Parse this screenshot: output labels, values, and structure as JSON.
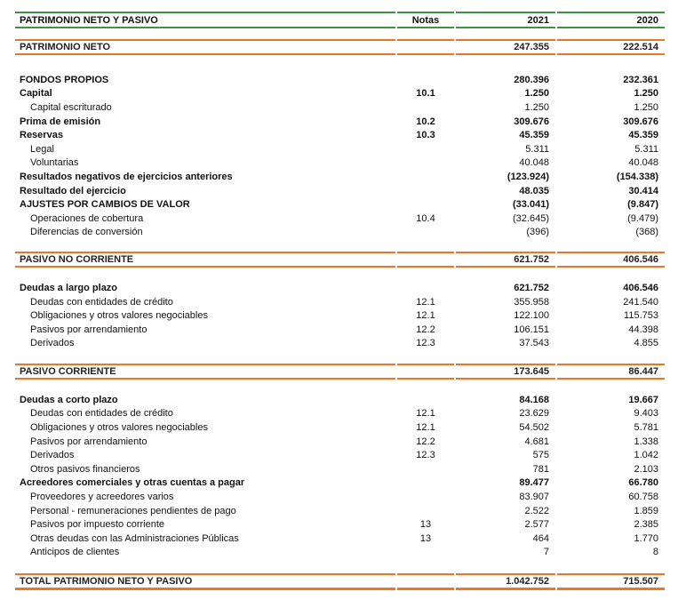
{
  "document_title": "PATRIMONIO NETO Y PASIVO",
  "colors": {
    "header_line_green": "#3f9145",
    "section_line_orange": "#ee7525",
    "text": "#111111"
  },
  "table": {
    "header": {
      "label": "PATRIMONIO NETO Y PASIVO",
      "notes": "Notas",
      "col2021": "2021",
      "col2020": "2020"
    },
    "rows": [
      {
        "style": "spacer",
        "height": 12
      },
      {
        "style": "section",
        "label": "PATRIMONIO NETO",
        "notes": "",
        "y2021": "247.355",
        "y2020": "222.514"
      },
      {
        "style": "spacer",
        "height": 20
      },
      {
        "style": "bold",
        "label": "FONDOS PROPIOS",
        "notes": "",
        "y2021": "280.396",
        "y2020": "232.361"
      },
      {
        "style": "bold",
        "label": "Capital",
        "notes": "10.1",
        "y2021": "1.250",
        "y2020": "1.250"
      },
      {
        "style": "item",
        "label": "Capital escriturado",
        "notes": "",
        "y2021": "1.250",
        "y2020": "1.250"
      },
      {
        "style": "bold",
        "label": "Prima de emisión",
        "notes": "10.2",
        "y2021": "309.676",
        "y2020": "309.676"
      },
      {
        "style": "bold",
        "label": "Reservas",
        "notes": "10.3",
        "y2021": "45.359",
        "y2020": "45.359"
      },
      {
        "style": "item",
        "label": "Legal",
        "notes": "",
        "y2021": "5.311",
        "y2020": "5.311"
      },
      {
        "style": "item",
        "label": "Voluntarias",
        "notes": "",
        "y2021": "40.048",
        "y2020": "40.048"
      },
      {
        "style": "bold",
        "label": "Resultados negativos de ejercicios anteriores",
        "notes": "",
        "y2021": "(123.924)",
        "y2020": "(154.338)"
      },
      {
        "style": "bold",
        "label": "Resultado del ejercicio",
        "notes": "",
        "y2021": "48.035",
        "y2020": "30.414"
      },
      {
        "style": "bold",
        "label": "AJUSTES POR CAMBIOS DE VALOR",
        "notes": "",
        "y2021": "(33.041)",
        "y2020": "(9.847)"
      },
      {
        "style": "item",
        "label": "Operaciones de cobertura",
        "notes": "10.4",
        "y2021": "(32.645)",
        "y2020": "(9.479)"
      },
      {
        "style": "item",
        "label": "Diferencias de conversión",
        "notes": "",
        "y2021": "(396)",
        "y2020": "(368)"
      },
      {
        "style": "spacer",
        "height": 14
      },
      {
        "style": "section",
        "label": "PASIVO NO CORRIENTE",
        "notes": "",
        "y2021": "621.752",
        "y2020": "406.546"
      },
      {
        "style": "spacer",
        "height": 15
      },
      {
        "style": "bold",
        "label": "Deudas a largo plazo",
        "notes": "",
        "y2021": "621.752",
        "y2020": "406.546"
      },
      {
        "style": "item",
        "label": "Deudas con entidades de crédito",
        "notes": "12.1",
        "y2021": "355.958",
        "y2020": "241.540"
      },
      {
        "style": "item",
        "label": "Obligaciones y otros valores negociables",
        "notes": "12.1",
        "y2021": "122.100",
        "y2020": "115.753"
      },
      {
        "style": "item",
        "label": "Pasivos por arrendamiento",
        "notes": "12.2",
        "y2021": "106.151",
        "y2020": "44.398"
      },
      {
        "style": "item",
        "label": "Derivados",
        "notes": "12.3",
        "y2021": "37.543",
        "y2020": "4.855"
      },
      {
        "style": "spacer",
        "height": 15
      },
      {
        "style": "section",
        "label": "PASIVO CORRIENTE",
        "notes": "",
        "y2021": "173.645",
        "y2020": "86.447"
      },
      {
        "style": "spacer",
        "height": 15
      },
      {
        "style": "bold",
        "label": "Deudas a corto plazo",
        "notes": "",
        "y2021": "84.168",
        "y2020": "19.667"
      },
      {
        "style": "item",
        "label": "Deudas con entidades de crédito",
        "notes": "12.1",
        "y2021": "23.629",
        "y2020": "9.403"
      },
      {
        "style": "item",
        "label": "Obligaciones y otros valores negociables",
        "notes": "12.1",
        "y2021": "54.502",
        "y2020": "5.781"
      },
      {
        "style": "item",
        "label": "Pasivos por arrendamiento",
        "notes": "12.2",
        "y2021": "4.681",
        "y2020": "1.338"
      },
      {
        "style": "item",
        "label": "Derivados",
        "notes": "12.3",
        "y2021": "575",
        "y2020": "1.042"
      },
      {
        "style": "item",
        "label": "Otros pasivos financieros",
        "notes": "",
        "y2021": "781",
        "y2020": "2.103"
      },
      {
        "style": "bold",
        "label": "Acreedores comerciales y otras cuentas a pagar",
        "notes": "",
        "y2021": "89.477",
        "y2020": "66.780"
      },
      {
        "style": "item",
        "label": "Proveedores y acreedores varios",
        "notes": "",
        "y2021": "83.907",
        "y2020": "60.758"
      },
      {
        "style": "item",
        "label": "Personal - remuneraciones pendientes de pago",
        "notes": "",
        "y2021": "2.522",
        "y2020": "1.859"
      },
      {
        "style": "item",
        "label": "Pasivos por impuesto corriente",
        "notes": "13",
        "y2021": "2.577",
        "y2020": "2.385"
      },
      {
        "style": "item",
        "label": "Otras deudas con las Administraciones Públicas",
        "notes": "13",
        "y2021": "464",
        "y2020": "1.770"
      },
      {
        "style": "item",
        "label": "Anticipos de clientes",
        "notes": "",
        "y2021": "7",
        "y2020": "8"
      },
      {
        "style": "spacer",
        "height": 16
      },
      {
        "style": "total",
        "label": "TOTAL PATRIMONIO NETO Y PASIVO",
        "notes": "",
        "y2021": "1.042.752",
        "y2020": "715.507"
      }
    ]
  }
}
